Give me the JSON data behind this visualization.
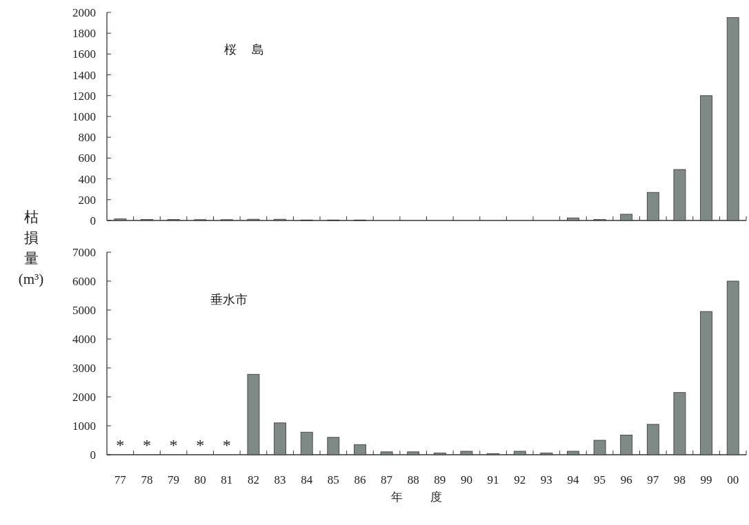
{
  "chart_data": [
    {
      "type": "bar",
      "title": "桜島",
      "ylabel": "枯損量(m³)",
      "categories": [
        null,
        null,
        null,
        null,
        null,
        null,
        null,
        null,
        null,
        null,
        null,
        null,
        null,
        null,
        null,
        null,
        null,
        null,
        null,
        null,
        null,
        null,
        null,
        null
      ],
      "values": [
        15,
        10,
        10,
        8,
        8,
        12,
        12,
        5,
        5,
        5,
        0,
        0,
        0,
        0,
        0,
        0,
        0,
        25,
        10,
        60,
        270,
        490,
        1200,
        1950
      ],
      "color": "#7f8a86",
      "ylim": [
        0,
        2000
      ],
      "yticks": [
        0,
        200,
        400,
        600,
        800,
        1000,
        1200,
        1400,
        1600,
        1800,
        2000
      ],
      "tick_labels": "y"
    },
    {
      "type": "bar",
      "title": "垂水市",
      "xlabel": "年度",
      "categories": [
        "77",
        "78",
        "79",
        "80",
        "81",
        "82",
        "83",
        "84",
        "85",
        "86",
        "87",
        "88",
        "89",
        "90",
        "91",
        "92",
        "93",
        "94",
        "95",
        "96",
        "97",
        "98",
        "99",
        "00"
      ],
      "values": [
        null,
        null,
        null,
        null,
        null,
        2780,
        1100,
        780,
        600,
        350,
        100,
        100,
        60,
        120,
        40,
        120,
        60,
        120,
        500,
        680,
        1050,
        2150,
        4950,
        6000
      ],
      "color": "#7f8a86",
      "ylim": [
        0,
        7000
      ],
      "yticks": [
        0,
        1000,
        2000,
        3000,
        4000,
        5000,
        6000,
        7000
      ],
      "annotations": [
        "*",
        "*",
        "*",
        "*",
        "*"
      ]
    }
  ]
}
